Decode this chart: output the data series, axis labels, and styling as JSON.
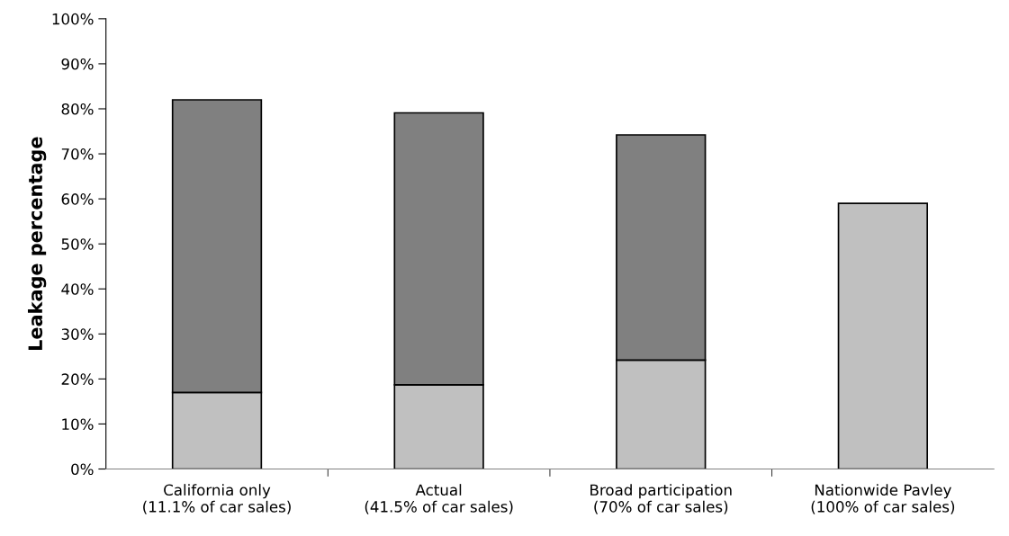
{
  "chart_data": {
    "type": "bar",
    "stacked": true,
    "ylabel": "Leakage percentage",
    "categories": [
      "California only\n(11.1% of car sales)",
      "Actual\n(41.5% of car sales)",
      "Broad participation\n(70% of car sales)",
      "Nationwide Pavley\n(100% of car sales)"
    ],
    "series": [
      {
        "color": "#c0c0c0",
        "values": [
          17,
          18.7,
          24.2,
          59
        ]
      },
      {
        "color": "#808080",
        "values": [
          65,
          60.4,
          50,
          0
        ]
      }
    ],
    "ylim": [
      0,
      100
    ],
    "yticks": [
      {
        "value": 0,
        "label": "0%"
      },
      {
        "value": 10,
        "label": "10%"
      },
      {
        "value": 20,
        "label": "20%"
      },
      {
        "value": 30,
        "label": "30%"
      },
      {
        "value": 40,
        "label": "40%"
      },
      {
        "value": 50,
        "label": "50%"
      },
      {
        "value": 60,
        "label": "60%"
      },
      {
        "value": 70,
        "label": "70%"
      },
      {
        "value": 80,
        "label": "80%"
      },
      {
        "value": 90,
        "label": "90%"
      },
      {
        "value": 100,
        "label": "100%"
      }
    ],
    "grid": false,
    "legend": false
  }
}
